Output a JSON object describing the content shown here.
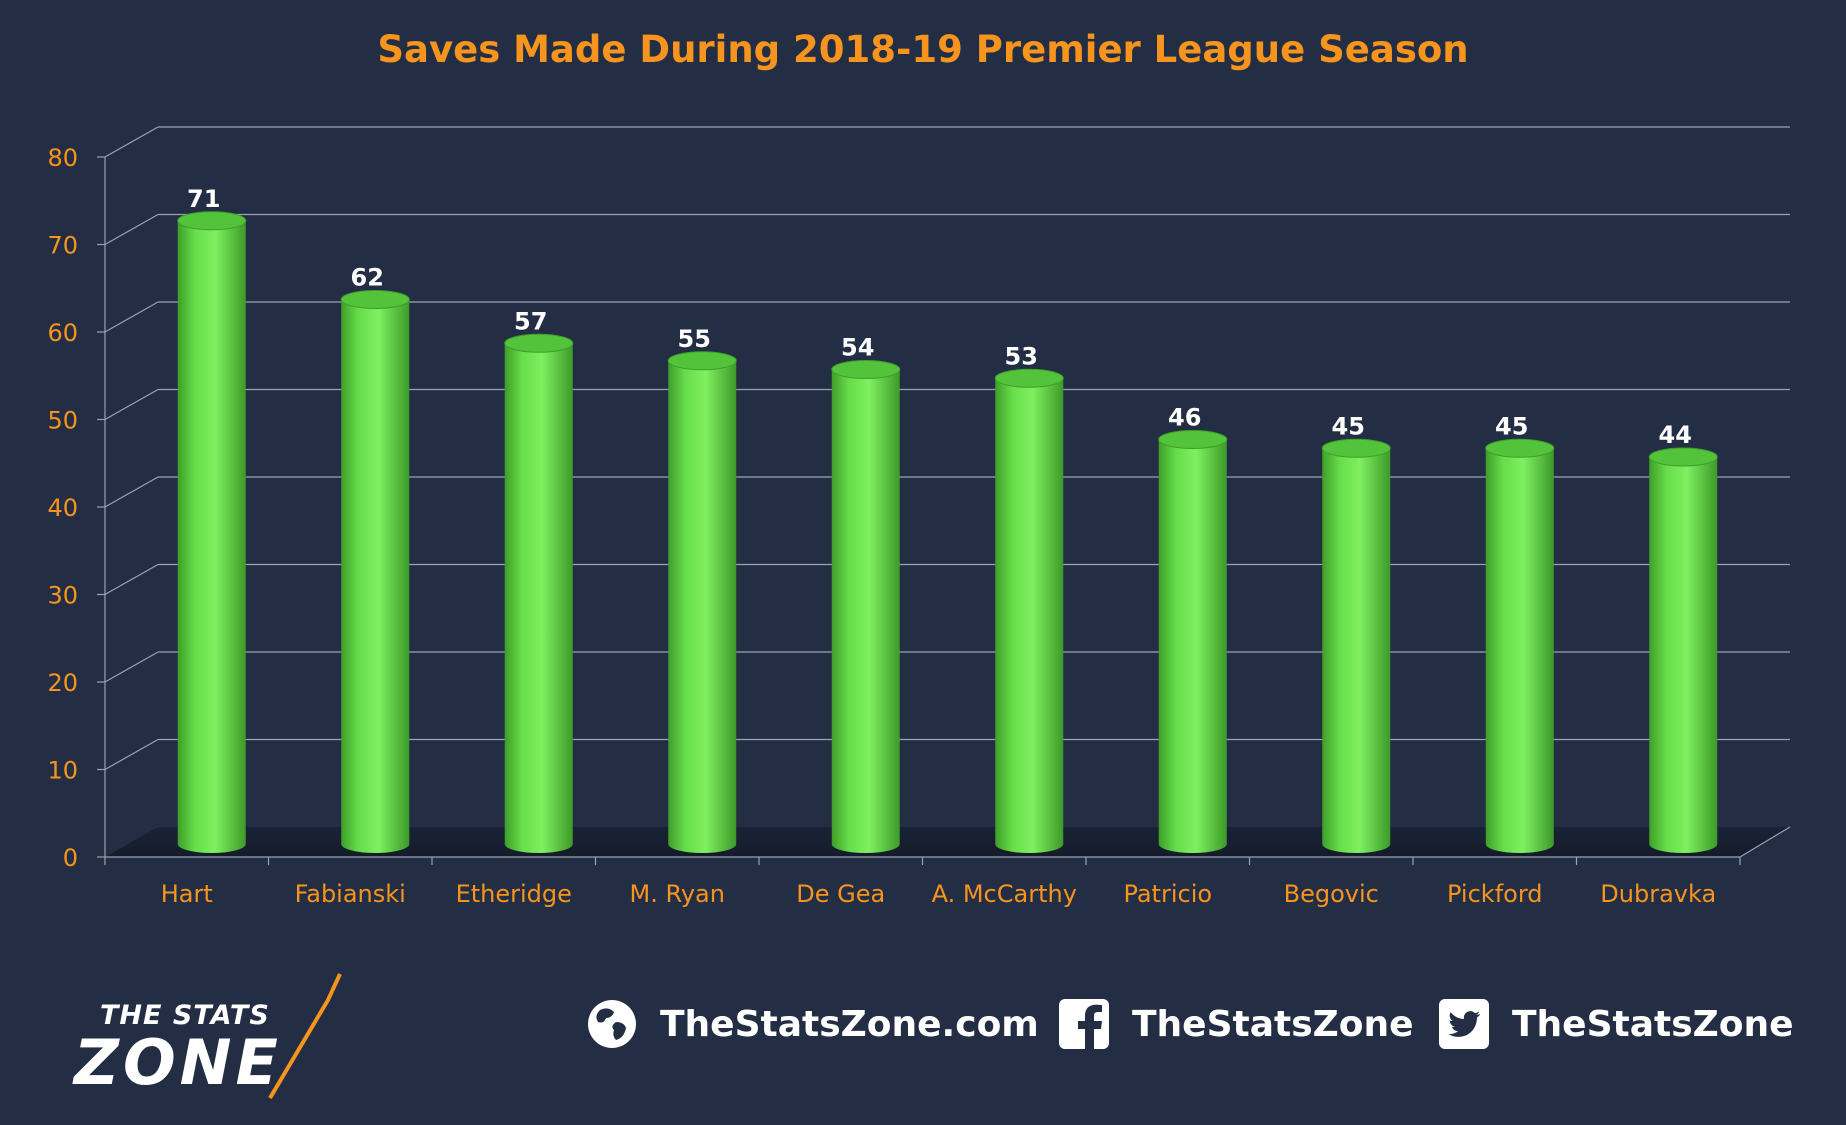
{
  "chart_data": {
    "type": "bar",
    "title": "Saves Made During 2018-19 Premier League Season",
    "xlabel": "",
    "ylabel": "",
    "categories": [
      "Hart",
      "Fabianski",
      "Etheridge",
      "M. Ryan",
      "De Gea",
      "A. McCarthy",
      "Patricio",
      "Begovic",
      "Pickford",
      "Dubravka"
    ],
    "values": [
      71,
      62,
      57,
      55,
      54,
      53,
      46,
      45,
      45,
      44
    ],
    "y_ticks": [
      "0",
      "10",
      "20",
      "30",
      "40",
      "50",
      "60",
      "70",
      "80"
    ],
    "ylim": [
      0,
      80
    ],
    "grid": true,
    "legend": "none",
    "style": "3d cylinders"
  },
  "colors": {
    "background": "#232e44",
    "title": "#f7941d",
    "axis_text": "#f7941d",
    "bar": "#66dd4a",
    "data_label": "#ffffff",
    "grid": "#9aa2b0"
  },
  "footer": {
    "logo_line1": "THE STATS",
    "logo_line2": "ZONE",
    "website": "TheStatsZone.com",
    "facebook": "TheStatsZone",
    "twitter": "TheStatsZone",
    "website_icon": "globe-icon",
    "facebook_icon": "facebook-icon",
    "twitter_icon": "twitter-icon"
  }
}
